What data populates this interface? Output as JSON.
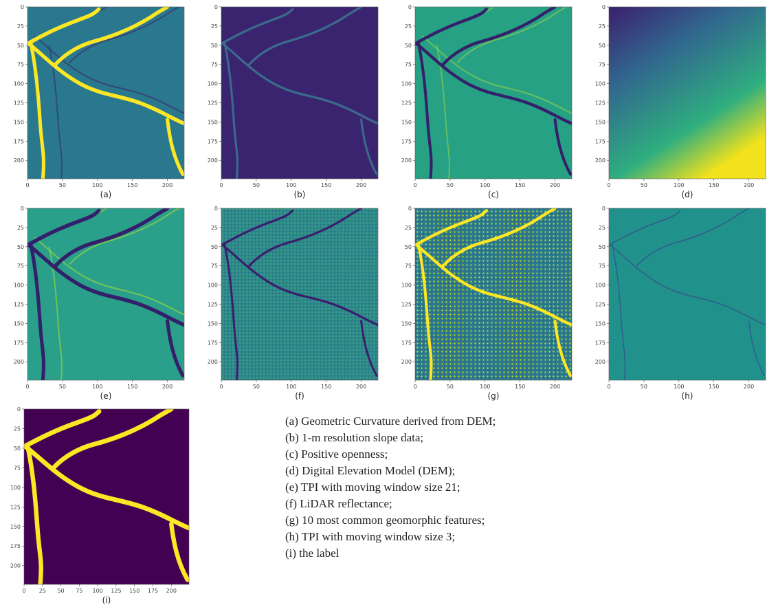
{
  "panels": [
    {
      "label": "(a)",
      "xlim": [
        0,
        224
      ],
      "ylim": [
        0,
        224
      ],
      "xticks": [
        0,
        50,
        100,
        150,
        200
      ],
      "yticks": [
        0,
        25,
        50,
        75,
        100,
        125,
        150,
        175,
        200
      ]
    },
    {
      "label": "(b)",
      "xlim": [
        0,
        224
      ],
      "ylim": [
        0,
        224
      ],
      "xticks": [
        0,
        50,
        100,
        150,
        200
      ],
      "yticks": [
        0,
        25,
        50,
        75,
        100,
        125,
        150,
        175,
        200
      ]
    },
    {
      "label": "(c)",
      "xlim": [
        0,
        224
      ],
      "ylim": [
        0,
        224
      ],
      "xticks": [
        0,
        50,
        100,
        150,
        200
      ],
      "yticks": [
        0,
        25,
        50,
        75,
        100,
        125,
        150,
        175,
        200
      ]
    },
    {
      "label": "(d)",
      "xlim": [
        0,
        224
      ],
      "ylim": [
        0,
        224
      ],
      "xticks": [
        0,
        50,
        100,
        150,
        200
      ],
      "yticks": [
        0,
        25,
        50,
        75,
        100,
        125,
        150,
        175,
        200
      ]
    },
    {
      "label": "(e)",
      "xlim": [
        0,
        224
      ],
      "ylim": [
        0,
        224
      ],
      "xticks": [
        0,
        50,
        100,
        150,
        200
      ],
      "yticks": [
        0,
        25,
        50,
        75,
        100,
        125,
        150,
        175,
        200
      ]
    },
    {
      "label": "(f)",
      "xlim": [
        0,
        224
      ],
      "ylim": [
        0,
        224
      ],
      "xticks": [
        0,
        50,
        100,
        150,
        200
      ],
      "yticks": [
        0,
        25,
        50,
        75,
        100,
        125,
        150,
        175,
        200
      ]
    },
    {
      "label": "(g)",
      "xlim": [
        0,
        224
      ],
      "ylim": [
        0,
        224
      ],
      "xticks": [
        0,
        50,
        100,
        150,
        200
      ],
      "yticks": [
        0,
        25,
        50,
        75,
        100,
        125,
        150,
        175,
        200
      ]
    },
    {
      "label": "(h)",
      "xlim": [
        0,
        224
      ],
      "ylim": [
        0,
        224
      ],
      "xticks": [
        0,
        50,
        100,
        150,
        200
      ],
      "yticks": [
        0,
        25,
        50,
        75,
        100,
        125,
        150,
        175,
        200
      ]
    },
    {
      "label": "(i)",
      "xlim": [
        0,
        224
      ],
      "ylim": [
        0,
        224
      ],
      "xticks": [
        0,
        25,
        50,
        75,
        100,
        125,
        150,
        175,
        200
      ],
      "yticks": [
        0,
        25,
        50,
        75,
        100,
        125,
        150,
        175,
        200
      ]
    }
  ],
  "caption": {
    "lines": [
      "(a) Geometric Curvature derived from DEM;",
      "(b) 1-m resolution slope data;",
      "(c) Positive openness;",
      "(d) Digital Elevation Model (DEM);",
      "(e) TPI with moving window size 21;",
      "(f) LiDAR reflectance;",
      "(g) 10 most common geomorphic features;",
      "(h) TPI with moving window size 3;",
      "(i) the label"
    ]
  }
}
